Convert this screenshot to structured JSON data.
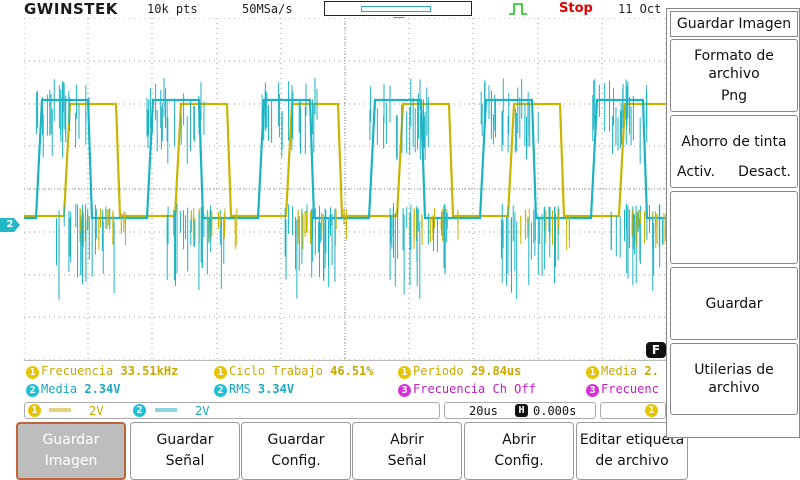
{
  "header": {
    "brand": "GWINSTEK",
    "record_length": "10k pts",
    "sample_rate": "50MSa/s",
    "run_state": "Stop",
    "date": "11 Oct"
  },
  "channels": {
    "ch2_marker": "2",
    "ch1_label": "1",
    "ch1_scale": "2V",
    "ch2_label": "2",
    "ch2_scale": "2V",
    "ch1_color": "#c9b400",
    "ch2_color": "#1bb3c4"
  },
  "timebase": {
    "scale": "20us",
    "position_icon": "H",
    "position": "0.000s"
  },
  "trigger": {
    "source": "1",
    "filter_marker": "F"
  },
  "measurements": {
    "freq_label": "Frecuencia",
    "freq_value": "33.51kHz",
    "duty_label": "Ciclo Trabajo",
    "duty_value": "46.51%",
    "period_label": "Periodo",
    "period_value": "29.84us",
    "mean1_label": "Media",
    "mean1_value": "2.",
    "mean2_label": "Media",
    "mean2_value": "2.34V",
    "rms_label": "RMS",
    "rms_value": "3.34V",
    "freq3_label": "Frecuencia Ch Off",
    "freq3b_label": "Frecuenc",
    "src1": "1",
    "src2": "2",
    "src3": "3"
  },
  "right_menu": {
    "title": "Guardar Imagen",
    "format_label_1": "Formato de",
    "format_label_2": "archivo",
    "format_value": "Png",
    "ink_label": "Ahorro de tinta",
    "ink_on": "Activ.",
    "ink_off": "Desact.",
    "save": "Guardar",
    "utils_1": "Utilerias de",
    "utils_2": "archivo"
  },
  "softkeys": [
    {
      "line1": "Guardar",
      "line2": "Imagen"
    },
    {
      "line1": "Guardar",
      "line2": "Señal"
    },
    {
      "line1": "Guardar",
      "line2": "Config."
    },
    {
      "line1": "Abrir",
      "line2": "Señal"
    },
    {
      "line1": "Abrir",
      "line2": "Config."
    },
    {
      "line1": "Editar etiqueta",
      "line2": "de archivo"
    }
  ]
}
